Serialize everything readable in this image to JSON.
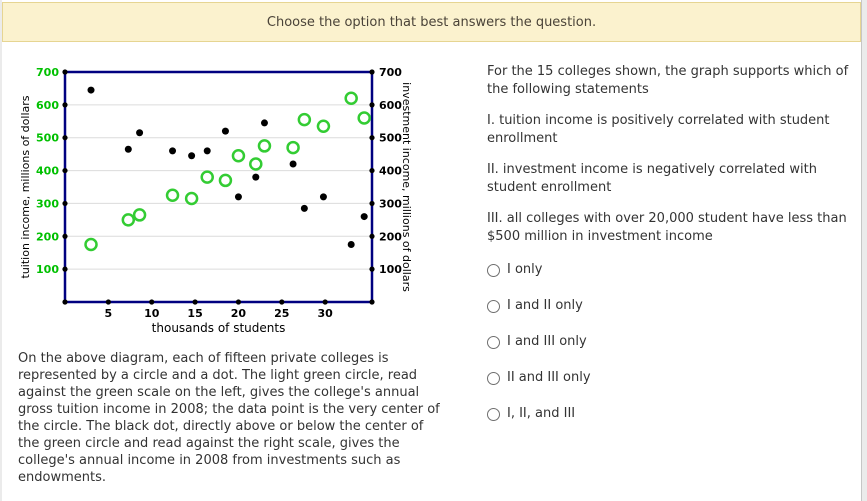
{
  "header": {
    "title": "Choose the option that best answers the question."
  },
  "chart_data": {
    "type": "scatter",
    "title": "",
    "xlabel": "thousands of students",
    "ylabel_left": "tuition income, millions of dollars",
    "ylabel_right": "investment income, millions of dollars",
    "xlim": [
      0,
      35.4
    ],
    "ylim": [
      0,
      700
    ],
    "x_ticks": [
      5,
      10,
      15,
      20,
      25,
      30
    ],
    "y_ticks": [
      100,
      200,
      300,
      400,
      500,
      600,
      700
    ],
    "grid": "horizontal gridlines at each 100 from 100 to 600",
    "legend_position": "none",
    "x": [
      3,
      7.3,
      8.6,
      12.4,
      14.6,
      16.4,
      18.5,
      20,
      22,
      23,
      26.3,
      27.6,
      29.8,
      33,
      34.5
    ],
    "series": [
      {
        "name": "tuition income (light green circle, read on left green scale)",
        "marker": "open-circle",
        "color": "#33cc33",
        "values": [
          175,
          250,
          265,
          325,
          315,
          380,
          370,
          445,
          420,
          475,
          470,
          555,
          535,
          620,
          560
        ]
      },
      {
        "name": "investment income (black dot, read on right scale)",
        "marker": "filled-dot",
        "color": "#000000",
        "values": [
          645,
          465,
          515,
          460,
          445,
          460,
          520,
          320,
          380,
          545,
          420,
          285,
          320,
          175,
          260
        ]
      }
    ],
    "colors": {
      "plot_border": "#000080",
      "gridline": "#dcdcdc",
      "left_tick_labels": "#00c000",
      "right_tick_labels": "#000000",
      "circle_stroke": "#33cc33",
      "dot_fill": "#000000"
    }
  },
  "description": {
    "text": "On the above diagram, each of fifteen private colleges is represented by a circle and a dot. The light green circle, read against the green scale on the left, gives the college's annual gross tuition income in 2008; the data point is the very center of the circle. The black dot, directly above or below the center of the green circle and read against the right scale, gives the college's annual income in 2008 from investments such as endowments."
  },
  "question": {
    "prompt": "For the 15 colleges shown, the graph supports which of the following statements",
    "statements": [
      {
        "text": "I. tuition income is positively correlated with student enrollment"
      },
      {
        "text": "II. investment income is negatively correlated with student enrollment"
      },
      {
        "text": "III. all colleges with over 20,000 student have less than $500 million in investment income"
      }
    ],
    "options": [
      {
        "label": "I only",
        "selected": false
      },
      {
        "label": "I and II only",
        "selected": false
      },
      {
        "label": "I and III only",
        "selected": false
      },
      {
        "label": "II and III only",
        "selected": false
      },
      {
        "label": "I, II, and III",
        "selected": false
      }
    ]
  }
}
